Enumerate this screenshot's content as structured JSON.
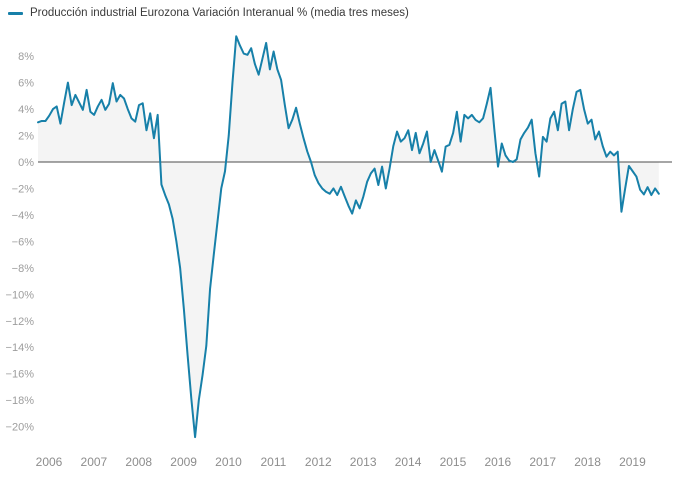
{
  "legend": {
    "label": "Producción industrial Eurozona Variación Interanual % (media tres meses)"
  },
  "chart_data": {
    "type": "line",
    "title": "Producción industrial Eurozona Variación Interanual % (media tres meses)",
    "series_name": "Producción industrial Eurozona Variación Interanual %",
    "unit": "%",
    "frequency": "monthly",
    "x_start": "2006-01",
    "x_end": "2019-11",
    "xlabel": "",
    "ylabel": "",
    "ylim": [
      -21.8,
      9.8
    ],
    "grid": "zero-line-only",
    "legend_position": "top-left",
    "line_color": "#1780a9",
    "area_fill_color": "#f4f4f4",
    "zero_line_color": "#4d4d4d",
    "y_tick_label_color": "#9d9d9d",
    "x_tick_label_color": "#8d8d8d",
    "y_ticks": [
      {
        "value": 8,
        "label": "8%"
      },
      {
        "value": 6,
        "label": "6%"
      },
      {
        "value": 4,
        "label": "4%"
      },
      {
        "value": 2,
        "label": "2%"
      },
      {
        "value": 0,
        "label": "0%"
      },
      {
        "value": -2,
        "label": "−2%"
      },
      {
        "value": -4,
        "label": "−4%"
      },
      {
        "value": -6,
        "label": "−6%"
      },
      {
        "value": -8,
        "label": "−8%"
      },
      {
        "value": -10,
        "label": "−10%"
      },
      {
        "value": -12,
        "label": "−12%"
      },
      {
        "value": -14,
        "label": "−14%"
      },
      {
        "value": -16,
        "label": "−16%"
      },
      {
        "value": -18,
        "label": "−18%"
      },
      {
        "value": -20,
        "label": "−20%"
      }
    ],
    "x_ticks": [
      {
        "year": 2006,
        "label": "2006"
      },
      {
        "year": 2007,
        "label": "2007"
      },
      {
        "year": 2008,
        "label": "2008"
      },
      {
        "year": 2009,
        "label": "2009"
      },
      {
        "year": 2010,
        "label": "2010"
      },
      {
        "year": 2011,
        "label": "2011"
      },
      {
        "year": 2012,
        "label": "2012"
      },
      {
        "year": 2013,
        "label": "2013"
      },
      {
        "year": 2014,
        "label": "2014"
      },
      {
        "year": 2015,
        "label": "2015"
      },
      {
        "year": 2016,
        "label": "2016"
      },
      {
        "year": 2017,
        "label": "2017"
      },
      {
        "year": 2018,
        "label": "2018"
      },
      {
        "year": 2019,
        "label": "2019"
      }
    ],
    "values": [
      3.0,
      3.1,
      3.1,
      3.5,
      4.0,
      4.2,
      2.9,
      4.5,
      6.0,
      4.3,
      5.07,
      4.5,
      3.94,
      5.45,
      3.8,
      3.56,
      4.2,
      4.7,
      3.94,
      4.4,
      5.96,
      4.57,
      5.07,
      4.8,
      4.0,
      3.3,
      3.05,
      4.3,
      4.44,
      2.4,
      3.68,
      1.8,
      3.56,
      -1.7,
      -2.5,
      -3.2,
      -4.3,
      -6.0,
      -8.0,
      -11.1,
      -14.6,
      -17.9,
      -20.8,
      -18.0,
      -16.1,
      -13.9,
      -9.6,
      -7.0,
      -4.5,
      -2.0,
      -0.7,
      2.0,
      6.0,
      9.5,
      8.8,
      8.2,
      8.1,
      8.6,
      7.4,
      6.6,
      7.8,
      9.0,
      7.0,
      8.35,
      7.0,
      6.2,
      4.3,
      2.55,
      3.2,
      4.1,
      2.9,
      1.8,
      0.8,
      0.0,
      -1.0,
      -1.6,
      -2.0,
      -2.25,
      -2.4,
      -2.0,
      -2.5,
      -1.87,
      -2.6,
      -3.3,
      -3.9,
      -2.9,
      -3.5,
      -2.6,
      -1.5,
      -0.86,
      -0.5,
      -1.74,
      -0.35,
      -2.0,
      -0.5,
      1.2,
      2.3,
      1.54,
      1.8,
      2.4,
      0.9,
      2.2,
      0.66,
      1.4,
      2.3,
      0.0,
      0.9,
      0.1,
      -0.73,
      1.16,
      1.3,
      2.2,
      3.8,
      1.54,
      3.56,
      3.3,
      3.56,
      3.18,
      3.0,
      3.3,
      4.4,
      5.6,
      2.5,
      -0.35,
      1.4,
      0.5,
      0.1,
      0.0,
      0.2,
      1.7,
      2.2,
      2.6,
      3.2,
      0.66,
      -1.1,
      1.9,
      1.54,
      3.3,
      3.8,
      2.4,
      4.4,
      4.57,
      2.4,
      4.0,
      5.3,
      5.45,
      4.0,
      2.9,
      3.2,
      1.7,
      2.3,
      1.2,
      0.4,
      0.78,
      0.5,
      0.78,
      -3.76,
      -2.0,
      -0.3,
      -0.7,
      -1.1,
      -2.1,
      -2.45,
      -1.9,
      -2.5,
      -2.0,
      -2.4
    ]
  }
}
